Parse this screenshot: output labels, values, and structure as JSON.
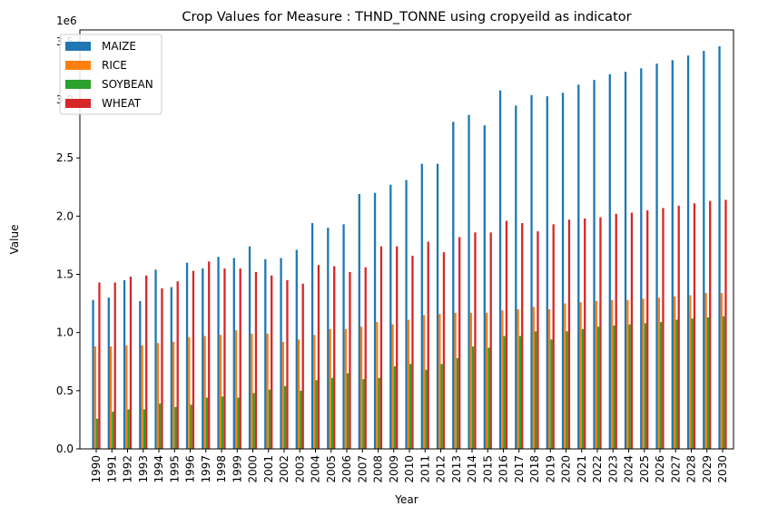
{
  "chart_data": {
    "type": "bar",
    "title": "Crop Values for Measure : THND_TONNE using cropyeild as indicator",
    "xlabel": "Year",
    "ylabel": "Value",
    "y_offset_label": "1e6",
    "ylim": [
      0,
      3.6
    ],
    "y_ticks": [
      0.0,
      0.5,
      1.0,
      1.5,
      2.0,
      2.5,
      3.0,
      3.5
    ],
    "y_tick_labels": [
      "0.0",
      "0.5",
      "1.0",
      "1.5",
      "2.0",
      "2.5",
      "3.0",
      "3.5"
    ],
    "legend_position": "top-left",
    "categories": [
      "1990",
      "1991",
      "1992",
      "1993",
      "1994",
      "1995",
      "1996",
      "1997",
      "1998",
      "1999",
      "2000",
      "2001",
      "2002",
      "2003",
      "2004",
      "2005",
      "2006",
      "2007",
      "2008",
      "2009",
      "2010",
      "2011",
      "2012",
      "2013",
      "2014",
      "2015",
      "2016",
      "2017",
      "2018",
      "2019",
      "2020",
      "2021",
      "2022",
      "2023",
      "2024",
      "2025",
      "2026",
      "2027",
      "2028",
      "2029",
      "2030"
    ],
    "series": [
      {
        "name": "MAIZE",
        "color": "#1f77b4",
        "values": [
          1.28,
          1.3,
          1.45,
          1.27,
          1.54,
          1.39,
          1.6,
          1.55,
          1.65,
          1.64,
          1.74,
          1.63,
          1.64,
          1.71,
          1.94,
          1.9,
          1.93,
          2.19,
          2.2,
          2.27,
          2.31,
          2.45,
          2.45,
          2.81,
          2.87,
          2.78,
          3.08,
          2.95,
          3.04,
          3.03,
          3.06,
          3.13,
          3.17,
          3.22,
          3.24,
          3.27,
          3.31,
          3.34,
          3.38,
          3.42,
          3.46
        ]
      },
      {
        "name": "RICE",
        "color": "#ff7f0e",
        "values": [
          0.88,
          0.88,
          0.89,
          0.89,
          0.91,
          0.92,
          0.96,
          0.97,
          0.98,
          1.02,
          0.99,
          0.99,
          0.92,
          0.94,
          0.98,
          1.03,
          1.03,
          1.05,
          1.09,
          1.07,
          1.11,
          1.15,
          1.16,
          1.17,
          1.17,
          1.17,
          1.19,
          1.2,
          1.22,
          1.2,
          1.25,
          1.26,
          1.27,
          1.28,
          1.28,
          1.29,
          1.3,
          1.31,
          1.32,
          1.34,
          1.34
        ]
      },
      {
        "name": "SOYBEAN",
        "color": "#2ca02c",
        "values": [
          0.26,
          0.32,
          0.34,
          0.34,
          0.39,
          0.36,
          0.38,
          0.44,
          0.45,
          0.44,
          0.48,
          0.51,
          0.54,
          0.5,
          0.59,
          0.61,
          0.65,
          0.6,
          0.61,
          0.71,
          0.73,
          0.68,
          0.73,
          0.78,
          0.88,
          0.87,
          0.97,
          0.97,
          1.01,
          0.94,
          1.01,
          1.03,
          1.05,
          1.06,
          1.07,
          1.08,
          1.09,
          1.11,
          1.12,
          1.13,
          1.14
        ]
      },
      {
        "name": "WHEAT",
        "color": "#d62728",
        "values": [
          1.43,
          1.43,
          1.48,
          1.49,
          1.38,
          1.44,
          1.53,
          1.61,
          1.55,
          1.55,
          1.52,
          1.49,
          1.45,
          1.42,
          1.58,
          1.57,
          1.52,
          1.56,
          1.74,
          1.74,
          1.66,
          1.78,
          1.69,
          1.82,
          1.86,
          1.86,
          1.96,
          1.94,
          1.87,
          1.93,
          1.97,
          1.98,
          1.99,
          2.02,
          2.03,
          2.05,
          2.07,
          2.09,
          2.11,
          2.13,
          2.14
        ]
      }
    ]
  }
}
